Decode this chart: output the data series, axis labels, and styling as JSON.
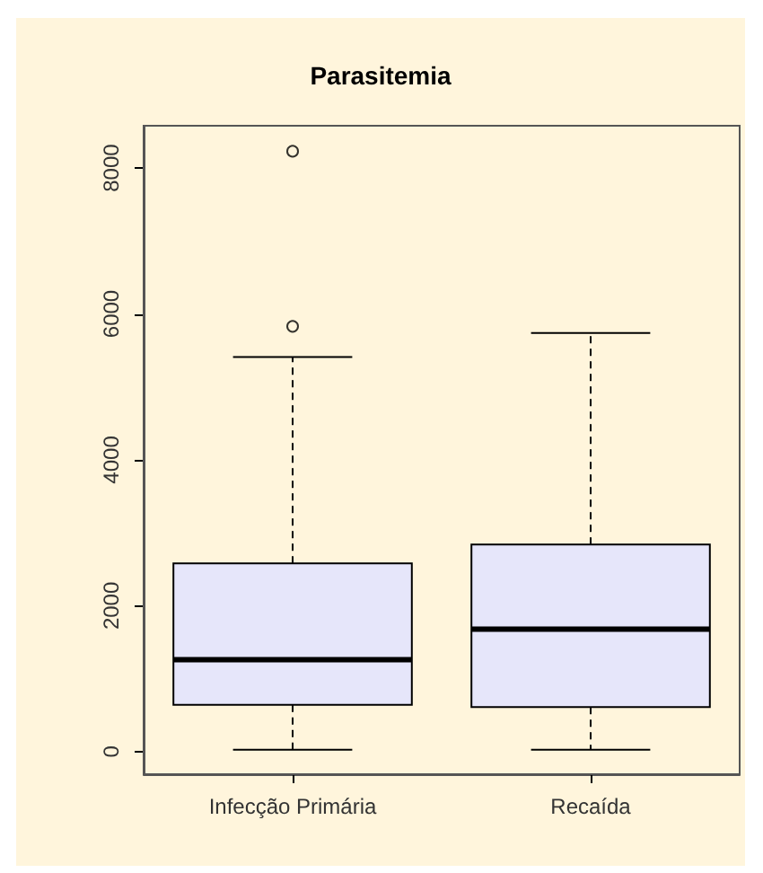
{
  "chart_data": {
    "type": "box",
    "title": "Parasitemia",
    "categories": [
      "Infecção Primária",
      "Recaída"
    ],
    "boxes": [
      {
        "low": 25,
        "q1": 640,
        "median": 1260,
        "q3": 2580,
        "high": 5410,
        "outliers": [
          5830,
          8230
        ]
      },
      {
        "low": 25,
        "q1": 610,
        "median": 1680,
        "q3": 2840,
        "high": 5740
      }
    ],
    "color": "#e6e6fa",
    "ylim": [
      -310,
      8580
    ],
    "yticks": [
      0,
      2000,
      4000,
      6000,
      8000
    ]
  }
}
